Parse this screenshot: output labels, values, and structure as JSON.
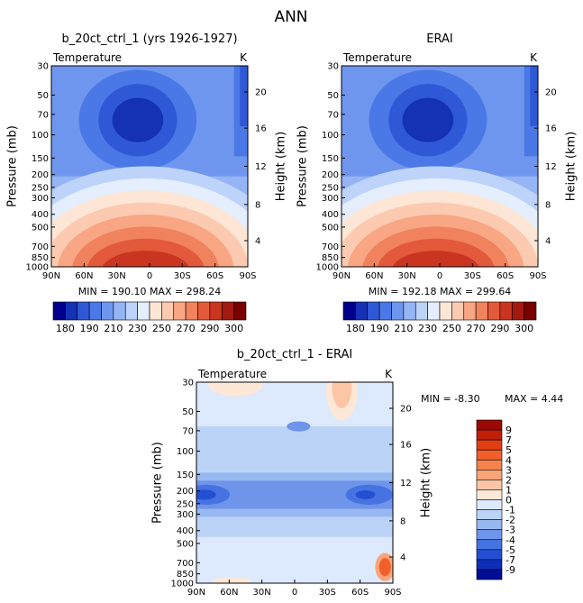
{
  "page_title": "ANN",
  "chart_data": [
    {
      "type": "heatmap",
      "title": "b_20ct_ctrl_1 (yrs 1926-1927)",
      "variable": "Temperature",
      "unit": "K",
      "ylabel": "Pressure (mb)",
      "ylabel_right": "Height (km)",
      "pressure_ticks": [
        "30",
        "50",
        "70",
        "100",
        "150",
        "200",
        "250",
        "300",
        "400",
        "500",
        "700",
        "850",
        "1000"
      ],
      "height_ticks": [
        "20",
        "16",
        "12",
        "8",
        "4"
      ],
      "lat_ticks": [
        "90N",
        "60N",
        "30N",
        "0",
        "30S",
        "60S",
        "90S"
      ],
      "stats": "MIN = 190.10   MAX = 298.24",
      "colorbar_labels": [
        "180",
        "190",
        "210",
        "230",
        "250",
        "270",
        "290",
        "300"
      ],
      "colorbar_colors": [
        "#00008c",
        "#1531b4",
        "#2f58d6",
        "#4a78e6",
        "#6f96ee",
        "#95b4f4",
        "#bed3fa",
        "#e4eefd",
        "#fde6d6",
        "#fccab0",
        "#f8a684",
        "#f1825e",
        "#e3593b",
        "#c93520",
        "#a31a12",
        "#7a0000"
      ]
    },
    {
      "type": "heatmap",
      "title": "ERAI",
      "variable": "Temperature",
      "unit": "K",
      "ylabel": "Pressure (mb)",
      "ylabel_right": "Height (km)",
      "pressure_ticks": [
        "30",
        "50",
        "70",
        "100",
        "150",
        "200",
        "250",
        "300",
        "400",
        "500",
        "700",
        "850",
        "1000"
      ],
      "height_ticks": [
        "20",
        "16",
        "12",
        "8",
        "4"
      ],
      "lat_ticks": [
        "90N",
        "60N",
        "30N",
        "0",
        "30S",
        "60S",
        "90S"
      ],
      "stats": "MIN = 192.18   MAX = 299.64",
      "colorbar_labels": [
        "180",
        "190",
        "210",
        "230",
        "250",
        "270",
        "290",
        "300"
      ],
      "colorbar_colors": [
        "#00008c",
        "#1531b4",
        "#2f58d6",
        "#4a78e6",
        "#6f96ee",
        "#95b4f4",
        "#bed3fa",
        "#e4eefd",
        "#fde6d6",
        "#fccab0",
        "#f8a684",
        "#f1825e",
        "#e3593b",
        "#c93520",
        "#a31a12",
        "#7a0000"
      ]
    },
    {
      "type": "heatmap",
      "title": "b_20ct_ctrl_1 - ERAI",
      "variable": "Temperature",
      "unit": "K",
      "ylabel": "Pressure (mb)",
      "ylabel_right": "Height (km)",
      "pressure_ticks": [
        "30",
        "50",
        "70",
        "100",
        "150",
        "200",
        "250",
        "300",
        "400",
        "500",
        "700",
        "850",
        "1000"
      ],
      "height_ticks": [
        "20",
        "16",
        "12",
        "8",
        "4"
      ],
      "lat_ticks": [
        "90N",
        "60N",
        "30N",
        "0",
        "30S",
        "60S",
        "90S"
      ],
      "stats_min": "MIN =   -8.30",
      "stats_max": "MAX =    4.44",
      "colorbar_labels": [
        "9",
        "7",
        "5",
        "4",
        "3",
        "2",
        "1",
        "0",
        "-1",
        "-2",
        "-3",
        "-4",
        "-5",
        "-7",
        "-9"
      ],
      "colorbar_colors": [
        "#9a0a00",
        "#c21e08",
        "#e23e14",
        "#f15f2a",
        "#f7824b",
        "#faa478",
        "#fcc6a6",
        "#fde8d8",
        "#dde9fc",
        "#bcd3f8",
        "#98b8f2",
        "#6f95eb",
        "#4772e2",
        "#2350d2",
        "#0d2fb8",
        "#000d96"
      ]
    }
  ]
}
